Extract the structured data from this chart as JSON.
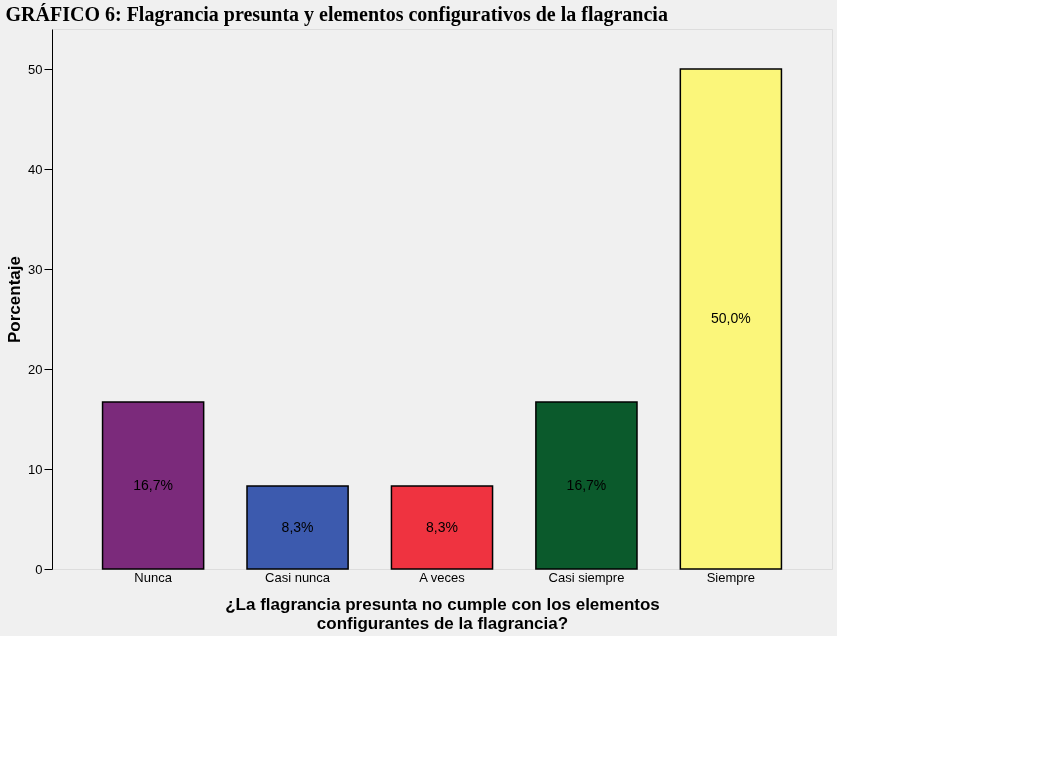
{
  "chart_data": {
    "type": "bar",
    "title": "GRÁFICO 6: Flagrancia presunta y elementos configurativos de la flagrancia",
    "xlabel": "¿La flagrancia presunta no cumple con los elementos\nconfigurantes de la flagrancia?",
    "ylabel": "Porcentaje",
    "categories": [
      "Nunca",
      "Casi nunca",
      "A veces",
      "Casi siempre",
      "Siempre"
    ],
    "values": [
      16.7,
      8.3,
      8.3,
      16.7,
      50.0
    ],
    "colors": [
      "#7b2a7b",
      "#3c5aae",
      "#ef3340",
      "#0b5a2c",
      "#fbf67a"
    ],
    "value_labels": [
      "16,7%",
      "8,3%",
      "8,3%",
      "16,7%",
      "50,0%"
    ],
    "ylim": [
      0,
      54
    ],
    "yticks": [
      0,
      10,
      20,
      30,
      40,
      50
    ],
    "grid": false
  }
}
